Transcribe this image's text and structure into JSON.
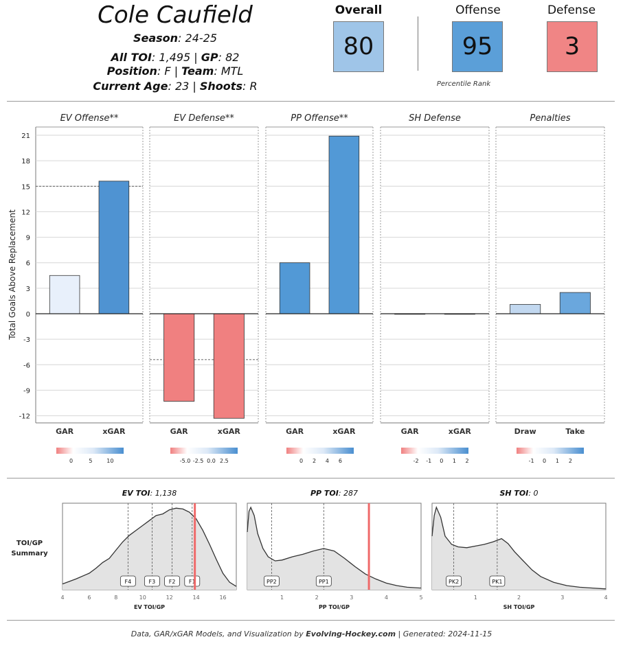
{
  "player": {
    "name": "Cole Caufield",
    "season_label": "Season",
    "season_value": "24-25",
    "toi_label": "All TOI",
    "toi_value": "1,495",
    "gp_label": "GP",
    "gp_value": "82",
    "position_label": "Position",
    "position_value": "F",
    "team_label": "Team",
    "team_value": "MTL",
    "age_label": "Current Age",
    "age_value": "23",
    "shoots_label": "Shoots",
    "shoots_value": "R"
  },
  "ranks": {
    "overall_label": "Overall",
    "overall_value": "80",
    "offense_label": "Offense",
    "offense_value": "95",
    "defense_label": "Defense",
    "defense_value": "3",
    "caption": "Percentile Rank",
    "colors": {
      "overall": "#9fc5e8",
      "offense": "#5b9fd8",
      "defense": "#f08585"
    }
  },
  "chart_data": [
    {
      "type": "bar",
      "title": "GAR bar panels",
      "ylabel": "Total Goals Above Replacement",
      "ylim": [
        -13,
        22
      ],
      "yticks": [
        "21",
        "18",
        "15",
        "12",
        "9",
        "6",
        "3",
        "0",
        "-3",
        "-6",
        "-9",
        "-12"
      ],
      "ytick_values": [
        21,
        18,
        15,
        12,
        9,
        6,
        3,
        0,
        -3,
        -6,
        -9,
        -12
      ],
      "panels": [
        {
          "title": "EV Offense**",
          "categories": [
            "GAR",
            "xGAR"
          ],
          "values": [
            4.5,
            15.6
          ],
          "colors": [
            "#e8f0fb",
            "#4f93d2"
          ],
          "ref_line": 15.0,
          "legend_ticks": [
            "0",
            "5",
            "10"
          ]
        },
        {
          "title": "EV Defense**",
          "categories": [
            "GAR",
            "xGAR"
          ],
          "values": [
            -10.3,
            -12.3
          ],
          "colors": [
            "#f08080",
            "#f08080"
          ],
          "ref_line": -5.4,
          "legend_ticks": [
            "-5.0",
            "-2.5",
            "0.0",
            "2.5"
          ]
        },
        {
          "title": "PP Offense**",
          "categories": [
            "GAR",
            "xGAR"
          ],
          "values": [
            6.0,
            20.9
          ],
          "colors": [
            "#5299d6",
            "#5299d6"
          ],
          "ref_line": null,
          "legend_ticks": [
            "0",
            "2",
            "4",
            "6"
          ]
        },
        {
          "title": "SH Defense",
          "categories": [
            "GAR",
            "xGAR"
          ],
          "values": [
            0.0,
            0.0
          ],
          "colors": [
            "#f5f5f5",
            "#f5f5f5"
          ],
          "ref_line": null,
          "legend_ticks": [
            "-2",
            "-1",
            "0",
            "1",
            "2"
          ]
        },
        {
          "title": "Penalties",
          "categories": [
            "Draw",
            "Take"
          ],
          "values": [
            1.1,
            2.5
          ],
          "colors": [
            "#c2d8f0",
            "#6aa7dd"
          ],
          "ref_line": null,
          "legend_ticks": [
            "-1",
            "0",
            "1",
            "2"
          ]
        }
      ]
    },
    {
      "type": "area",
      "title": "TOI/GP Summary",
      "panels": [
        {
          "title_label": "EV TOI",
          "title_value": "1,138",
          "xlabel": "EV TOI/GP",
          "xlim": [
            4,
            17
          ],
          "xticks": [
            4,
            6,
            8,
            10,
            12,
            14,
            16
          ],
          "marker": 13.9,
          "refs": [
            {
              "label": "F4",
              "x": 8.9
            },
            {
              "label": "F3",
              "x": 10.7
            },
            {
              "label": "F2",
              "x": 12.2
            },
            {
              "label": "F1",
              "x": 13.7
            }
          ],
          "density_x": [
            4,
            5,
            6,
            6.5,
            7,
            7.5,
            8,
            8.5,
            9,
            9.5,
            10,
            10.5,
            11,
            11.5,
            12,
            12.5,
            13,
            13.5,
            14,
            14.5,
            15,
            15.5,
            16,
            16.5,
            17
          ],
          "density_y": [
            0.07,
            0.13,
            0.2,
            0.26,
            0.33,
            0.38,
            0.48,
            0.58,
            0.66,
            0.72,
            0.78,
            0.84,
            0.9,
            0.92,
            0.97,
            0.99,
            0.98,
            0.94,
            0.86,
            0.72,
            0.55,
            0.37,
            0.2,
            0.09,
            0.04
          ]
        },
        {
          "title_label": "PP TOI",
          "title_value": "287",
          "xlabel": "PP TOI/GP",
          "xlim": [
            0,
            5
          ],
          "xticks": [
            1,
            2,
            3,
            4,
            5
          ],
          "marker": 3.5,
          "refs": [
            {
              "label": "PP2",
              "x": 0.7
            },
            {
              "label": "PP1",
              "x": 2.2
            }
          ],
          "density_x": [
            0,
            0.05,
            0.1,
            0.2,
            0.3,
            0.45,
            0.6,
            0.8,
            1.0,
            1.3,
            1.6,
            1.9,
            2.2,
            2.5,
            2.8,
            3.1,
            3.4,
            3.7,
            4.0,
            4.3,
            4.6,
            5.0
          ],
          "density_y": [
            0.7,
            0.95,
            1.0,
            0.9,
            0.68,
            0.5,
            0.4,
            0.35,
            0.36,
            0.4,
            0.43,
            0.47,
            0.5,
            0.47,
            0.38,
            0.28,
            0.19,
            0.13,
            0.08,
            0.05,
            0.03,
            0.02
          ]
        },
        {
          "title_label": "SH TOI",
          "title_value": "0",
          "xlabel": "SH TOI/GP",
          "xlim": [
            0,
            4
          ],
          "xticks": [
            1,
            2,
            3,
            4
          ],
          "marker": null,
          "refs": [
            {
              "label": "PK2",
              "x": 0.5
            },
            {
              "label": "PK1",
              "x": 1.5
            }
          ],
          "density_x": [
            0,
            0.05,
            0.1,
            0.2,
            0.3,
            0.45,
            0.6,
            0.8,
            1.0,
            1.2,
            1.4,
            1.6,
            1.75,
            1.9,
            2.1,
            2.3,
            2.5,
            2.8,
            3.1,
            3.4,
            3.7,
            4.0
          ],
          "density_y": [
            0.65,
            0.9,
            1.0,
            0.88,
            0.65,
            0.55,
            0.52,
            0.51,
            0.53,
            0.55,
            0.58,
            0.62,
            0.56,
            0.46,
            0.35,
            0.24,
            0.16,
            0.09,
            0.05,
            0.03,
            0.02,
            0.01
          ]
        }
      ],
      "row_label": [
        "TOI/GP",
        "Summary"
      ]
    }
  ],
  "footer": {
    "prefix": "Data, GAR/xGAR Models, and Visualization by ",
    "brand": "Evolving-Hockey.com",
    "suffix": " | Generated: 2024-11-15"
  }
}
